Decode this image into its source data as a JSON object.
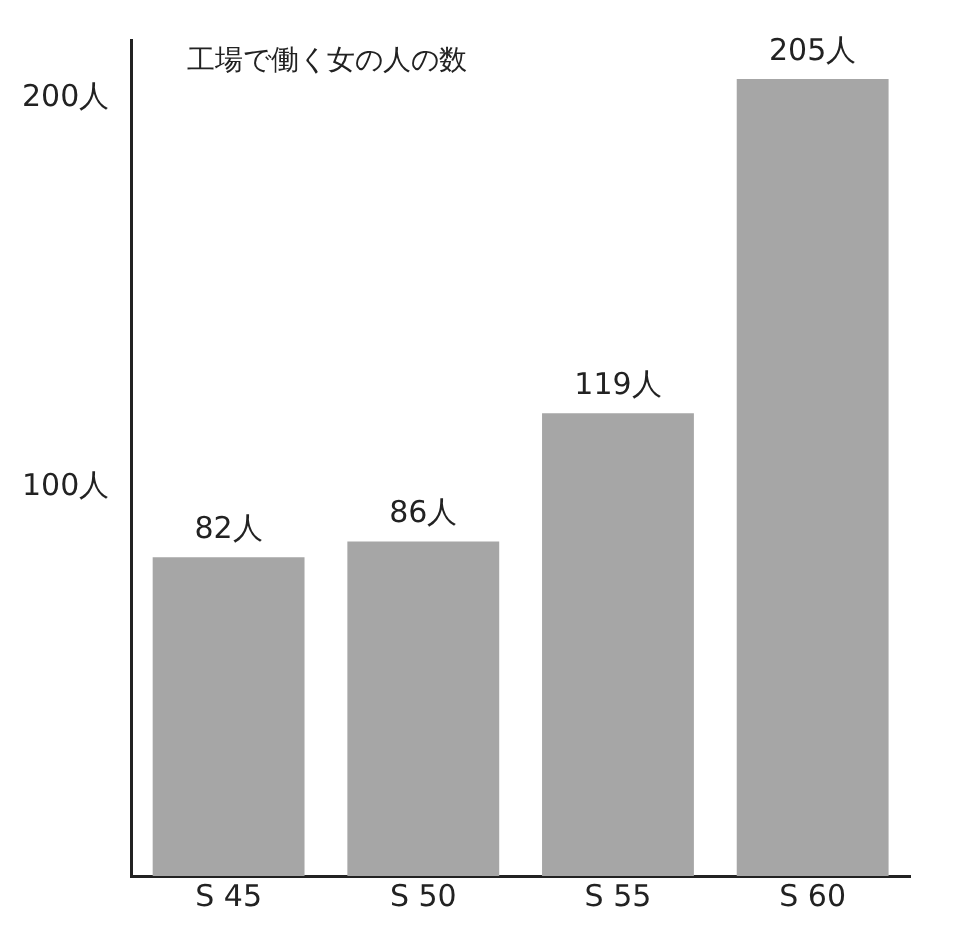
{
  "chart_data": {
    "type": "bar",
    "title": "工場で働く女の人の数",
    "categories": [
      "S 45",
      "S 50",
      "S 55",
      "S 60"
    ],
    "values": [
      82,
      86,
      119,
      205
    ],
    "value_labels": [
      "82人",
      "86人",
      "119人",
      "205人"
    ],
    "color": "#a6a6a6",
    "ylim": [
      0,
      215
    ],
    "yticks": [
      {
        "value": 100,
        "label": "100人"
      },
      {
        "value": 200,
        "label": "200人"
      }
    ],
    "grid": false,
    "legend": false
  }
}
